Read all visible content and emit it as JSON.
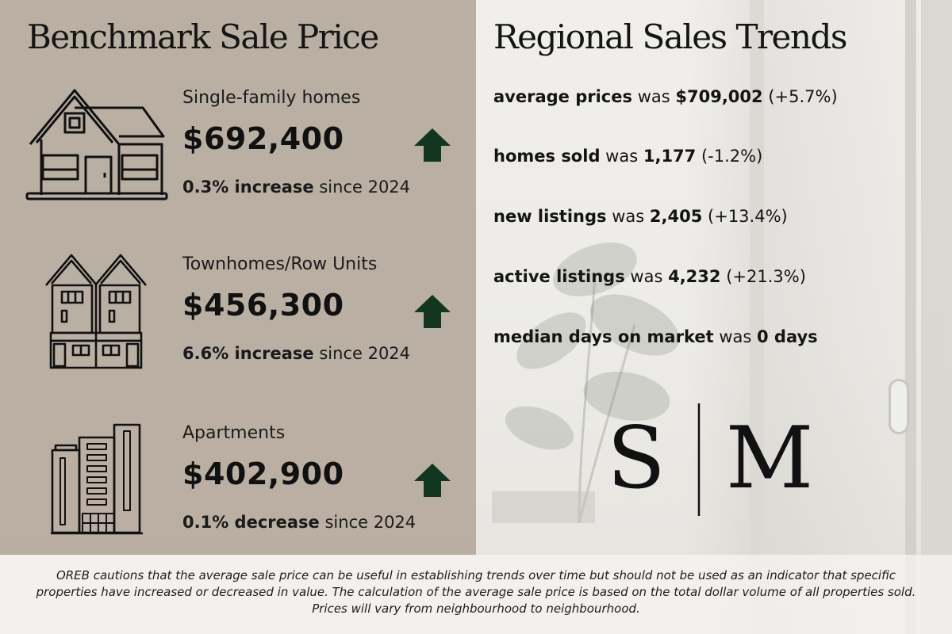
{
  "left": {
    "title": "Benchmark Sale Price",
    "categories": [
      {
        "label": "Single-family homes",
        "price": "$692,400",
        "change_value": "0.3% increase",
        "change_suffix": "since 2024",
        "icon": "house-icon",
        "trend_icon": "up-arrow-icon"
      },
      {
        "label": "Townhomes/Row Units",
        "price": "$456,300",
        "change_value": "6.6% increase",
        "change_suffix": "since 2024",
        "icon": "townhouse-icon",
        "trend_icon": "up-arrow-icon"
      },
      {
        "label": "Apartments",
        "price": "$402,900",
        "change_value": "0.1% decrease",
        "change_suffix": "since 2024",
        "icon": "apartment-building-icon",
        "trend_icon": "up-arrow-icon"
      }
    ]
  },
  "right": {
    "title": "Regional Sales Trends",
    "trends": [
      {
        "label": "average prices",
        "connector": "was",
        "value": "$709,002",
        "change": "(+5.7%)"
      },
      {
        "label": "homes sold",
        "connector": "was",
        "value": "1,177",
        "change": "(-1.2%)"
      },
      {
        "label": "new listings",
        "connector": "was",
        "value": "2,405",
        "change": "(+13.4%)"
      },
      {
        "label": "active listings",
        "connector": "was",
        "value": "4,232",
        "change": "(+21.3%)"
      },
      {
        "label": "median days on market",
        "connector": "was",
        "value": "0 days",
        "change": ""
      }
    ],
    "logo": {
      "left": "S",
      "right": "M"
    }
  },
  "disclaimer": {
    "lines": [
      "OREB cautions that the average sale price can be useful in establishing trends over time but should not be used as an indicator that specific",
      "properties have increased or decreased in value. The calculation of the average sale price is based on the total dollar volume of all properties sold.",
      "Prices will vary from neighbourhood to neighbourhood."
    ]
  },
  "colors": {
    "panel": "#b6aa9d",
    "arrow": "#12361f",
    "ink": "#151515"
  }
}
